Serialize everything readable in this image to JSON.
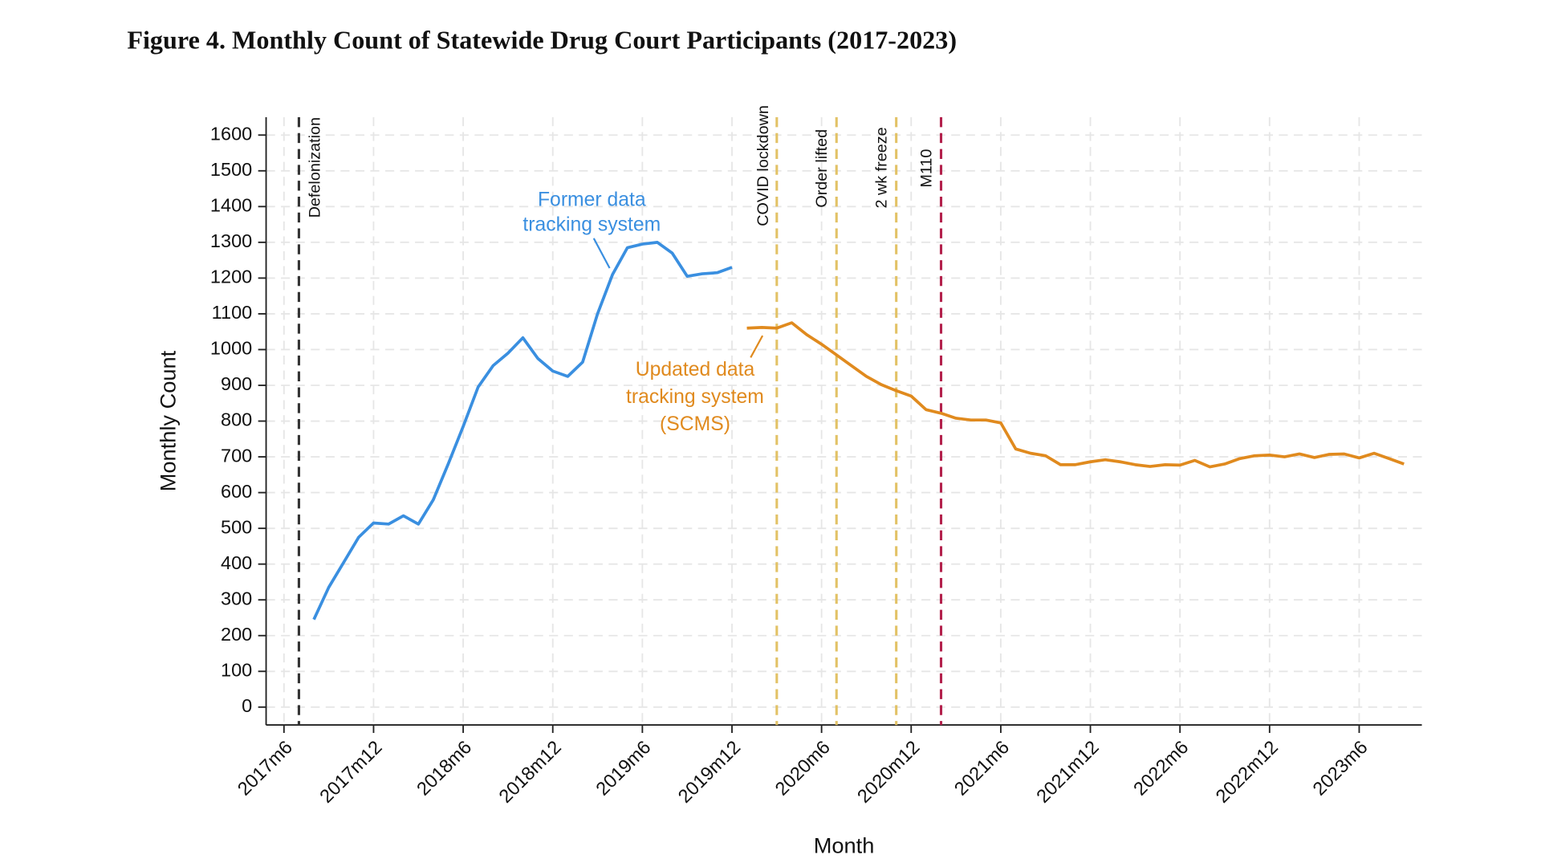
{
  "chart_data": {
    "type": "line",
    "title": "Figure 4. Monthly Count of Statewide Drug Court Participants (2017-2023)",
    "x_label": "Month",
    "y_label": "Monthly Count",
    "categories": [
      "2017m6",
      null,
      null,
      null,
      null,
      null,
      "2017m12",
      null,
      null,
      null,
      null,
      null,
      "2018m6",
      null,
      null,
      null,
      null,
      null,
      "2018m12",
      null,
      null,
      null,
      null,
      null,
      "2019m6",
      null,
      null,
      null,
      null,
      null,
      "2019m12",
      null,
      null,
      null,
      null,
      null,
      "2020m6",
      null,
      null,
      null,
      null,
      null,
      "2020m12",
      null,
      null,
      null,
      null,
      null,
      "2021m6",
      null,
      null,
      null,
      null,
      null,
      "2021m12",
      null,
      null,
      null,
      null,
      null,
      "2022m6",
      null,
      null,
      null,
      null,
      null,
      "2022m12",
      null,
      null,
      null,
      null,
      null,
      "2023m6",
      null,
      null,
      null
    ],
    "ylim": [
      0,
      1600
    ],
    "yticks": [
      0,
      100,
      200,
      300,
      400,
      500,
      600,
      700,
      800,
      900,
      1000,
      1100,
      1200,
      1300,
      1400,
      1500,
      1600
    ],
    "grid": true,
    "series": [
      {
        "name": "Former data tracking system",
        "color": "#3a8fe0",
        "values": [
          null,
          null,
          245,
          335,
          405,
          475,
          515,
          512,
          535,
          512,
          580,
          680,
          785,
          895,
          955,
          990,
          1033,
          975,
          940,
          925,
          965,
          1100,
          1210,
          1285,
          1295,
          1300,
          1270,
          1205,
          1212,
          1215,
          1230,
          null,
          null,
          null,
          null,
          null,
          null,
          null,
          null,
          null,
          null,
          null,
          null,
          null,
          null,
          null,
          null,
          null,
          null,
          null,
          null,
          null,
          null,
          null,
          null,
          null,
          null,
          null,
          null,
          null,
          null,
          null,
          null,
          null,
          null,
          null,
          null,
          null,
          null,
          null,
          null,
          null,
          null,
          null,
          null,
          null
        ]
      },
      {
        "name": "Updated data tracking system (SCMS)",
        "color": "#e08a1e",
        "values": [
          null,
          null,
          null,
          null,
          null,
          null,
          null,
          null,
          null,
          null,
          null,
          null,
          null,
          null,
          null,
          null,
          null,
          null,
          null,
          null,
          null,
          null,
          null,
          null,
          null,
          null,
          null,
          null,
          null,
          null,
          null,
          1060,
          1062,
          1060,
          1075,
          1042,
          1015,
          985,
          955,
          925,
          902,
          885,
          870,
          832,
          822,
          808,
          803,
          803,
          795,
          722,
          710,
          703,
          678,
          678,
          686,
          692,
          686,
          678,
          673,
          678,
          677,
          690,
          672,
          680,
          695,
          703,
          705,
          700,
          708,
          698,
          707,
          708,
          697,
          710,
          695,
          680
        ]
      }
    ],
    "annotations": [
      {
        "lines": [
          "Former data",
          "tracking system"
        ],
        "color": "#3a8fe0"
      },
      {
        "lines": [
          "Updated data",
          "tracking system",
          "(SCMS)"
        ],
        "color": "#e08a1e"
      }
    ],
    "events": [
      {
        "label": "Defelonization",
        "x": 1,
        "color": "#333333"
      },
      {
        "label": "COVID lockdown",
        "x": 33,
        "color": "#e2c266"
      },
      {
        "label": "Order lifted",
        "x": 37,
        "color": "#e2c266"
      },
      {
        "label": "2 wk freeze",
        "x": 41,
        "color": "#e2c266"
      },
      {
        "label": "M110",
        "x": 44,
        "color": "#b3214c"
      }
    ]
  }
}
